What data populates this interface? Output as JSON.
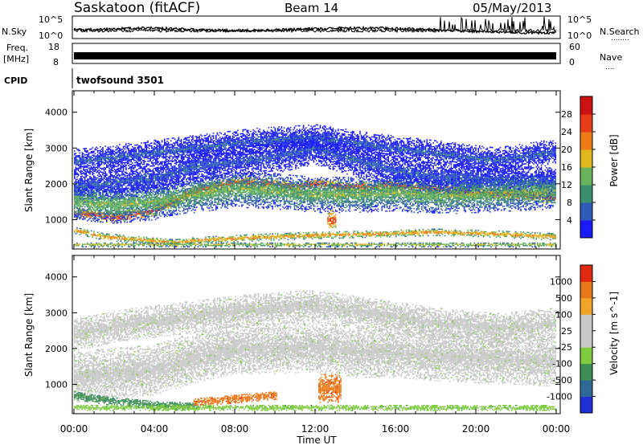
{
  "header": {
    "station": "Saskatoon (fitACF)",
    "beam": "Beam 14",
    "date": "05/May/2013"
  },
  "aux_labels": {
    "nsky": "N.Sky",
    "nsearch": "N.Search",
    "nsearch_dots": "........",
    "freq_line1": "Freq.",
    "freq_line2": "[MHz]",
    "nave": "Nave",
    "nave_dots": "....",
    "cpid": "CPID",
    "cpid_value": "twofsound 3501",
    "noise_ticks_left": [
      "10^5",
      "10^0"
    ],
    "noise_ticks_right": [
      "10^5",
      "10^0"
    ],
    "freq_ticks": [
      "18",
      "8"
    ],
    "nave_ticks": [
      "60",
      "0"
    ]
  },
  "chart_data": [
    {
      "type": "heatmap",
      "name": "power",
      "ylabel": "Slant Range [km]",
      "xlabel": "Time UT",
      "x_ticks": [
        "00:00",
        "04:00",
        "08:00",
        "12:00",
        "16:00",
        "20:00",
        "00:00"
      ],
      "x_range_hours": [
        0,
        24
      ],
      "ylim": [
        180,
        4600
      ],
      "y_ticks": [
        1000,
        2000,
        3000,
        4000
      ],
      "colorbar": {
        "label": "Power [dB]",
        "ticks": [
          "4",
          "8",
          "12",
          "16",
          "20",
          "24",
          "28"
        ],
        "colors": [
          "#1a1aff",
          "#2e5bb8",
          "#3b8f6e",
          "#69b45a",
          "#e0b81c",
          "#ee7a18",
          "#e73b1a",
          "#cc1111"
        ]
      },
      "bands": [
        {
          "range_km": [
            [
              0,
              1200
            ],
            [
              2,
              1050
            ],
            [
              4,
              1250
            ],
            [
              6,
              1800
            ],
            [
              8,
              2050
            ],
            [
              10,
              2000
            ],
            [
              11,
              1900
            ],
            [
              12,
              2000
            ],
            [
              14,
              1900
            ],
            [
              16,
              1950
            ],
            [
              18,
              1850
            ],
            [
              20,
              1750
            ],
            [
              22,
              1700
            ],
            [
              24,
              1600
            ]
          ],
          "width_km": 150,
          "level": 6
        },
        {
          "range_km": [
            [
              0,
              1900
            ],
            [
              2,
              2050
            ],
            [
              4,
              2150
            ],
            [
              6,
              2500
            ],
            [
              8,
              2600
            ],
            [
              10,
              2750
            ],
            [
              12,
              3000
            ],
            [
              14,
              2650
            ],
            [
              16,
              2350
            ],
            [
              18,
              2200
            ],
            [
              20,
              2150
            ],
            [
              22,
              2100
            ],
            [
              24,
              2000
            ]
          ],
          "width_km": 450,
          "level": 1
        },
        {
          "range_km": [
            [
              0,
              1500
            ],
            [
              2,
              1400
            ],
            [
              4,
              1500
            ],
            [
              6,
              1700
            ],
            [
              8,
              1850
            ],
            [
              10,
              1800
            ],
            [
              12,
              1700
            ],
            [
              14,
              1700
            ],
            [
              16,
              1750
            ],
            [
              18,
              1650
            ],
            [
              20,
              1700
            ],
            [
              22,
              1750
            ],
            [
              24,
              1800
            ]
          ],
          "width_km": 500,
          "level": 3
        },
        {
          "range_km": [
            [
              0,
              2600
            ],
            [
              3,
              2800
            ],
            [
              6,
              3000
            ],
            [
              9,
              3200
            ],
            [
              12,
              3300
            ],
            [
              15,
              3050
            ],
            [
              18,
              2850
            ],
            [
              21,
              2650
            ],
            [
              24,
              2900
            ]
          ],
          "width_km": 350,
          "level": 1
        },
        {
          "range_km": [
            [
              0,
              700
            ],
            [
              1.5,
              520
            ],
            [
              3,
              450
            ],
            [
              5,
              350
            ],
            [
              6,
              420
            ],
            [
              9,
              500
            ],
            [
              12,
              560
            ],
            [
              15,
              600
            ],
            [
              18,
              650
            ],
            [
              21,
              600
            ],
            [
              24,
              520
            ]
          ],
          "width_km": 90,
          "level": 5
        },
        {
          "range_km": [
            [
              12.6,
              1000
            ],
            [
              13.0,
              1000
            ]
          ],
          "width_km": 250,
          "level": 6
        },
        {
          "range_km": [
            [
              0,
              300
            ],
            [
              24,
              300
            ]
          ],
          "width_km": 60,
          "level": 4
        }
      ]
    },
    {
      "type": "heatmap",
      "name": "velocity",
      "ylabel": "Slant Range [km]",
      "xlabel": "Time UT",
      "x_ticks": [
        "00:00",
        "04:00",
        "08:00",
        "12:00",
        "16:00",
        "20:00",
        "00:00"
      ],
      "x_range_hours": [
        0,
        24
      ],
      "ylim": [
        180,
        4600
      ],
      "y_ticks": [
        1000,
        2000,
        3000,
        4000
      ],
      "colorbar": {
        "label": "Velocity [m s^-1]",
        "ticks": [
          "1000",
          "500",
          "100",
          "25",
          "-25",
          "-100",
          "-500",
          "-1000"
        ],
        "colors": [
          "#1f2fd6",
          "#2e6a98",
          "#3d8f55",
          "#80cc40",
          "#c8c8c8",
          "#c8c8c8",
          "#f0a428",
          "#e8761a",
          "#e02a10"
        ]
      },
      "bands": [
        {
          "range_km": [
            [
              0,
              1200
            ],
            [
              2,
              1300
            ],
            [
              4,
              1400
            ],
            [
              6,
              1750
            ],
            [
              8,
              2000
            ],
            [
              10,
              2000
            ],
            [
              12,
              2050
            ],
            [
              14,
              1900
            ],
            [
              16,
              1900
            ],
            [
              18,
              1800
            ],
            [
              20,
              1750
            ],
            [
              22,
              1700
            ],
            [
              24,
              1650
            ]
          ],
          "width_km": 700,
          "level": 4
        },
        {
          "range_km": [
            [
              0,
              2400
            ],
            [
              3,
              2700
            ],
            [
              6,
              2900
            ],
            [
              9,
              3100
            ],
            [
              12,
              3200
            ],
            [
              15,
              2950
            ],
            [
              18,
              2700
            ],
            [
              21,
              2550
            ],
            [
              24,
              2700
            ]
          ],
          "width_km": 450,
          "level": 4
        },
        {
          "range_km": [
            [
              0,
              700
            ],
            [
              1.5,
              560
            ],
            [
              3,
              480
            ],
            [
              4.5,
              400
            ],
            [
              6,
              420
            ]
          ],
          "width_km": 120,
          "level": 2
        },
        {
          "range_km": [
            [
              6,
              500
            ],
            [
              8,
              600
            ],
            [
              10,
              700
            ]
          ],
          "width_km": 120,
          "level": 7
        },
        {
          "range_km": [
            [
              12.2,
              900
            ],
            [
              13.2,
              900
            ]
          ],
          "width_km": 400,
          "level": 7
        },
        {
          "range_km": [
            [
              0,
              350
            ],
            [
              24,
              350
            ]
          ],
          "width_km": 80,
          "level": 3
        }
      ]
    }
  ]
}
